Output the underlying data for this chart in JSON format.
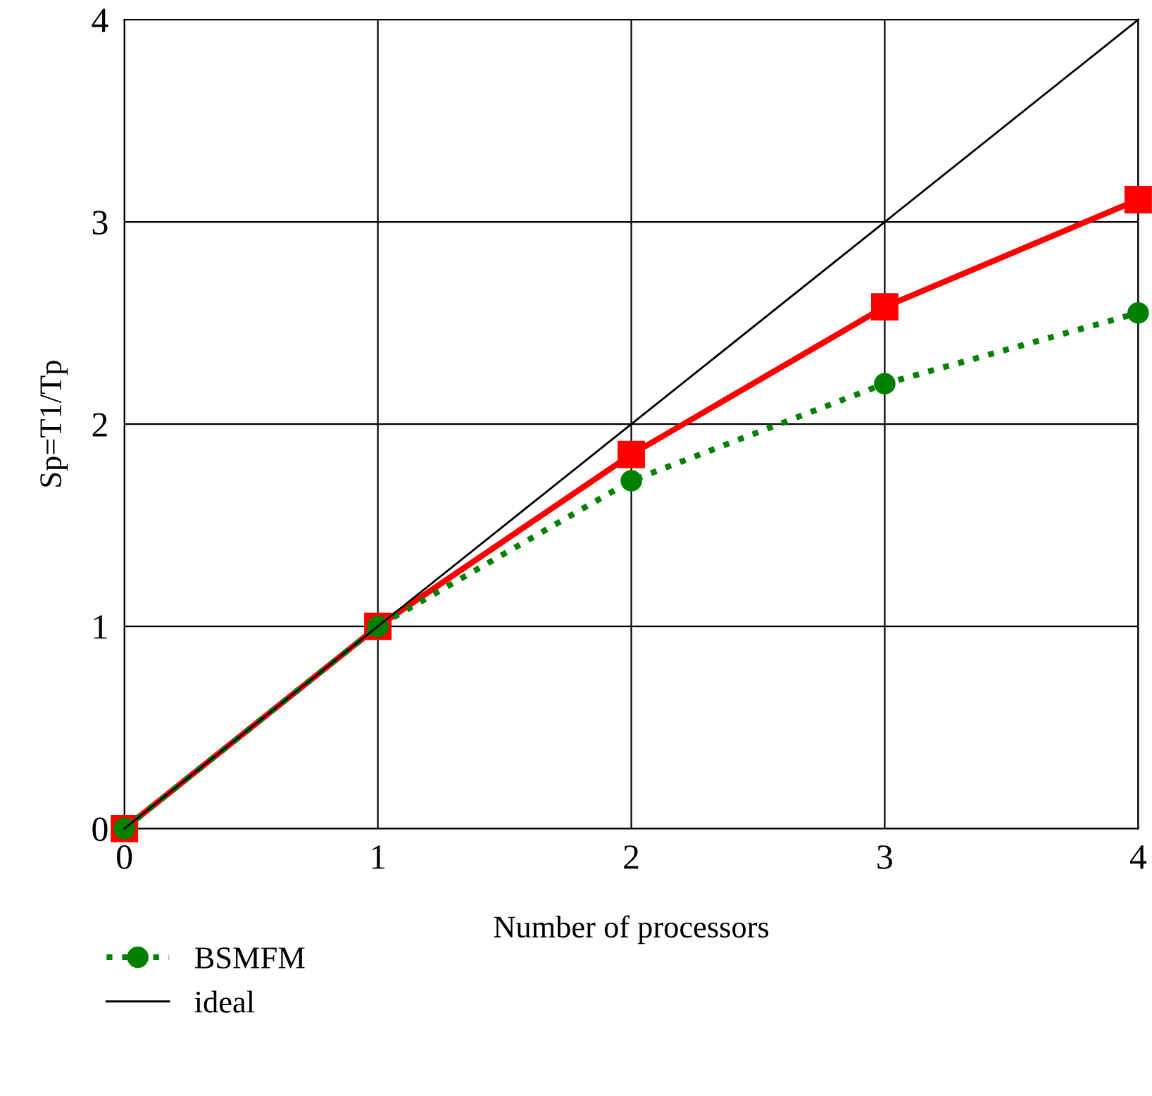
{
  "chart_data": {
    "type": "line",
    "xlabel": "Number of processors",
    "ylabel": "Sp=T1/Tp",
    "x": [
      0,
      1,
      2,
      3,
      4
    ],
    "series": [
      {
        "color": "#ff0000",
        "values": [
          0,
          1,
          1.85,
          2.58,
          3.11
        ],
        "marker": "square",
        "line_style": "solid"
      },
      {
        "name": "BSMFM",
        "color": "#008000",
        "values": [
          0,
          1,
          1.72,
          2.2,
          2.55
        ],
        "marker": "circle",
        "line_style": "dotted"
      },
      {
        "name": "ideal",
        "color": "#000000",
        "values": [
          0,
          1,
          2,
          3,
          4
        ],
        "marker": "none",
        "line_style": "solid"
      }
    ],
    "xlim": [
      0,
      4
    ],
    "ylim": [
      0,
      4
    ],
    "xticks": [
      0,
      1,
      2,
      3,
      4
    ],
    "yticks": [
      0,
      1,
      2,
      3,
      4
    ],
    "grid": true,
    "legend": "bottom"
  }
}
